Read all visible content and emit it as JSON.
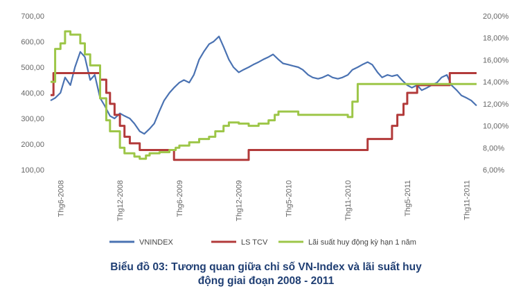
{
  "chart_data": {
    "type": "line",
    "title": "Biểu đồ 03: Tương quan giữa chỉ số VN-Index và lãi suất huy động giai đoạn 2008 - 2011",
    "title_lines": [
      "Biểu đồ 03: Tương quan giữa chỉ số VN-Index và lãi suất huy",
      "động giai đoạn 2008 - 2011"
    ],
    "x_labels": [
      "Thg6-2008",
      "Thg12-2008",
      "Thg6-2009",
      "Thg12-2009",
      "Thg5-2010",
      "Thg11-2010",
      "Thg5-2011",
      "Thg11-2011"
    ],
    "x_label_dates": [
      "2008-06",
      "2008-12",
      "2009-06",
      "2009-12",
      "2010-05",
      "2010-11",
      "2011-05",
      "2011-11"
    ],
    "x_range": [
      "2008-05",
      "2011-12"
    ],
    "y_left": {
      "ticks": [
        "100,00",
        "200,00",
        "300,00",
        "400,00",
        "500,00",
        "600,00",
        "700,00"
      ],
      "range": [
        100,
        700
      ]
    },
    "y_right": {
      "ticks": [
        "6,00%",
        "8,00%",
        "10,00%",
        "12,00%",
        "14,00%",
        "16,00%",
        "18,00%",
        "20,00%"
      ],
      "range": [
        6,
        20
      ]
    },
    "grid": false,
    "legend_position": "bottom",
    "series": [
      {
        "name": "VNINDEX",
        "axis": "left",
        "color": "#4a72b2",
        "kind": "line",
        "points": [
          [
            "2008-05",
            370
          ],
          [
            "2008-05-15",
            380
          ],
          [
            "2008-06",
            400
          ],
          [
            "2008-06-15",
            460
          ],
          [
            "2008-07",
            430
          ],
          [
            "2008-07-15",
            500
          ],
          [
            "2008-08",
            560
          ],
          [
            "2008-08-15",
            540
          ],
          [
            "2008-09",
            450
          ],
          [
            "2008-09-15",
            470
          ],
          [
            "2008-10",
            380
          ],
          [
            "2008-10-15",
            350
          ],
          [
            "2008-11",
            310
          ],
          [
            "2008-11-15",
            300
          ],
          [
            "2008-12",
            320
          ],
          [
            "2008-12-15",
            310
          ],
          [
            "2009-01",
            300
          ],
          [
            "2009-01-15",
            280
          ],
          [
            "2009-02",
            250
          ],
          [
            "2009-02-15",
            240
          ],
          [
            "2009-03",
            260
          ],
          [
            "2009-03-15",
            280
          ],
          [
            "2009-04",
            330
          ],
          [
            "2009-04-15",
            370
          ],
          [
            "2009-05",
            400
          ],
          [
            "2009-05-15",
            420
          ],
          [
            "2009-06",
            440
          ],
          [
            "2009-06-15",
            450
          ],
          [
            "2009-07",
            440
          ],
          [
            "2009-07-15",
            470
          ],
          [
            "2009-08",
            530
          ],
          [
            "2009-08-15",
            560
          ],
          [
            "2009-09",
            590
          ],
          [
            "2009-09-15",
            600
          ],
          [
            "2009-10",
            620
          ],
          [
            "2009-10-15",
            580
          ],
          [
            "2009-11",
            530
          ],
          [
            "2009-11-15",
            500
          ],
          [
            "2009-12",
            480
          ],
          [
            "2009-12-15",
            490
          ],
          [
            "2010-01",
            500
          ],
          [
            "2010-01-15",
            510
          ],
          [
            "2010-02",
            520
          ],
          [
            "2010-02-15",
            530
          ],
          [
            "2010-03",
            540
          ],
          [
            "2010-03-15",
            550
          ],
          [
            "2010-04",
            530
          ],
          [
            "2010-04-15",
            515
          ],
          [
            "2010-05",
            510
          ],
          [
            "2010-05-15",
            505
          ],
          [
            "2010-06",
            500
          ],
          [
            "2010-06-15",
            490
          ],
          [
            "2010-07",
            470
          ],
          [
            "2010-07-15",
            460
          ],
          [
            "2010-08",
            455
          ],
          [
            "2010-08-15",
            460
          ],
          [
            "2010-09",
            470
          ],
          [
            "2010-09-15",
            460
          ],
          [
            "2010-10",
            455
          ],
          [
            "2010-10-15",
            460
          ],
          [
            "2010-11",
            470
          ],
          [
            "2010-11-15",
            490
          ],
          [
            "2010-12",
            500
          ],
          [
            "2010-12-15",
            510
          ],
          [
            "2011-01",
            520
          ],
          [
            "2011-01-15",
            510
          ],
          [
            "2011-02",
            480
          ],
          [
            "2011-02-15",
            460
          ],
          [
            "2011-03",
            470
          ],
          [
            "2011-03-15",
            465
          ],
          [
            "2011-04",
            470
          ],
          [
            "2011-04-15",
            450
          ],
          [
            "2011-05",
            430
          ],
          [
            "2011-05-15",
            420
          ],
          [
            "2011-06",
            430
          ],
          [
            "2011-06-15",
            410
          ],
          [
            "2011-07",
            420
          ],
          [
            "2011-07-15",
            430
          ],
          [
            "2011-08",
            440
          ],
          [
            "2011-08-15",
            460
          ],
          [
            "2011-09",
            470
          ],
          [
            "2011-09-15",
            430
          ],
          [
            "2011-10",
            410
          ],
          [
            "2011-10-15",
            390
          ],
          [
            "2011-11",
            380
          ],
          [
            "2011-11-15",
            370
          ],
          [
            "2011-12",
            350
          ]
        ]
      },
      {
        "name": "LS TCV",
        "axis": "right",
        "color": "#b23a3a",
        "kind": "step",
        "points": [
          [
            "2008-05",
            12.8
          ],
          [
            "2008-05-10",
            14.8
          ],
          [
            "2008-10",
            14.2
          ],
          [
            "2008-10-20",
            13.0
          ],
          [
            "2008-11",
            12.0
          ],
          [
            "2008-11-15",
            11.0
          ],
          [
            "2008-12-01",
            10.0
          ],
          [
            "2008-12-15",
            9.0
          ],
          [
            "2009-01",
            8.4
          ],
          [
            "2009-02",
            7.8
          ],
          [
            "2009-05-15",
            6.9
          ],
          [
            "2009-12",
            6.9
          ],
          [
            "2010-01",
            7.8
          ],
          [
            "2010-12",
            7.8
          ],
          [
            "2011-01",
            8.8
          ],
          [
            "2011-03",
            8.8
          ],
          [
            "2011-03-15",
            10.0
          ],
          [
            "2011-04",
            11.0
          ],
          [
            "2011-04-20",
            12.0
          ],
          [
            "2011-05",
            13.0
          ],
          [
            "2011-06",
            13.7
          ],
          [
            "2011-09",
            13.7
          ],
          [
            "2011-09-10",
            14.8
          ],
          [
            "2011-12",
            14.8
          ]
        ]
      },
      {
        "name": "Lãi suất huy động kỳ hạn 1 năm",
        "axis": "right",
        "color": "#9dc648",
        "kind": "step",
        "points": [
          [
            "2008-05",
            14.0
          ],
          [
            "2008-05-15",
            17.0
          ],
          [
            "2008-06",
            17.5
          ],
          [
            "2008-06-15",
            18.6
          ],
          [
            "2008-07",
            18.3
          ],
          [
            "2008-08",
            17.5
          ],
          [
            "2008-08-15",
            16.5
          ],
          [
            "2008-09",
            15.5
          ],
          [
            "2008-10",
            12.5
          ],
          [
            "2008-10-20",
            10.5
          ],
          [
            "2008-11",
            9.5
          ],
          [
            "2008-12",
            8.0
          ],
          [
            "2008-12-15",
            7.5
          ],
          [
            "2009-01-15",
            7.2
          ],
          [
            "2009-02",
            7.0
          ],
          [
            "2009-02-20",
            7.3
          ],
          [
            "2009-03",
            7.5
          ],
          [
            "2009-04",
            7.6
          ],
          [
            "2009-05",
            7.8
          ],
          [
            "2009-05-20",
            8.0
          ],
          [
            "2009-06",
            8.2
          ],
          [
            "2009-07",
            8.5
          ],
          [
            "2009-08",
            8.8
          ],
          [
            "2009-09",
            9.0
          ],
          [
            "2009-09-20",
            9.5
          ],
          [
            "2009-10-15",
            10.0
          ],
          [
            "2009-11",
            10.3
          ],
          [
            "2009-12",
            10.2
          ],
          [
            "2010-01",
            10.0
          ],
          [
            "2010-02",
            10.2
          ],
          [
            "2010-03",
            10.5
          ],
          [
            "2010-03-20",
            11.0
          ],
          [
            "2010-04",
            11.3
          ],
          [
            "2010-05",
            11.3
          ],
          [
            "2010-06",
            11.0
          ],
          [
            "2010-11",
            10.8
          ],
          [
            "2010-11-15",
            12.2
          ],
          [
            "2010-12",
            13.8
          ],
          [
            "2011-12",
            13.8
          ]
        ]
      }
    ]
  }
}
